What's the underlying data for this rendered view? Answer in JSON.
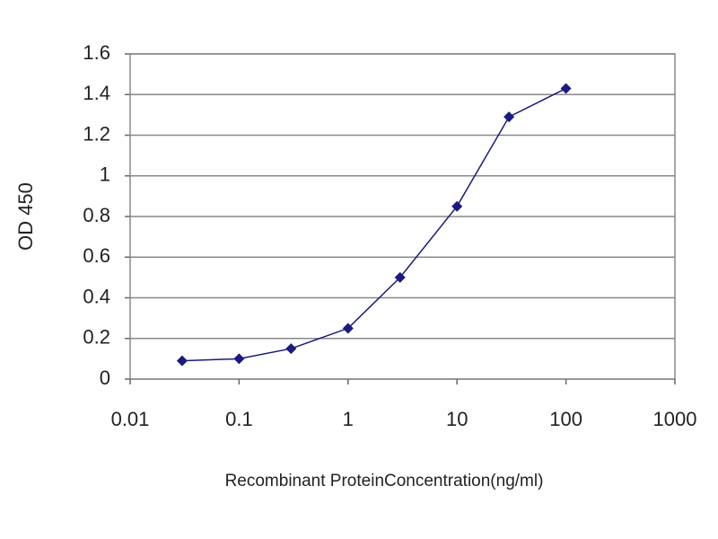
{
  "chart_data": {
    "type": "line",
    "xlabel": "Recombinant ProteinConcentration(ng/ml)",
    "ylabel": "OD 450",
    "x": [
      0.03,
      0.1,
      0.3,
      1,
      3,
      10,
      30,
      100
    ],
    "series": [
      {
        "color": "#1a1a80",
        "values": [
          0.09,
          0.1,
          0.15,
          0.25,
          0.5,
          0.85,
          1.29,
          1.43
        ]
      }
    ],
    "xscale": "log",
    "xlim": [
      0.01,
      1000
    ],
    "xticks": [
      0.01,
      0.1,
      1,
      10,
      100,
      1000
    ],
    "ylim": [
      0,
      1.6
    ],
    "yticks": [
      0,
      0.2,
      0.4,
      0.6,
      0.8,
      1,
      1.2,
      1.4,
      1.6
    ],
    "grid": true
  }
}
